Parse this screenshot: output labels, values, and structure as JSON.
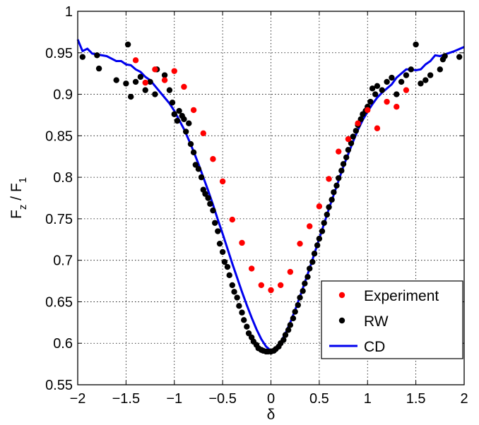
{
  "chart_data": {
    "type": "scatter",
    "xlabel": "δ",
    "ylabel": "F",
    "ylabel_sub_num": "z",
    "ylabel_slash": " / F",
    "ylabel_sub_den": "1",
    "xlim": [
      -2,
      2
    ],
    "ylim": [
      0.55,
      1
    ],
    "x_ticks": [
      -2,
      -1.5,
      -1,
      -0.5,
      0,
      0.5,
      1,
      1.5,
      2
    ],
    "x_tick_labels": [
      "−2",
      "−1.5",
      "−1",
      "−0.5",
      "0",
      "0.5",
      "1",
      "1.5",
      "2"
    ],
    "y_ticks": [
      0.55,
      0.6,
      0.65,
      0.7,
      0.75,
      0.8,
      0.85,
      0.9,
      0.95,
      1
    ],
    "y_tick_labels": [
      "0.55",
      "0.6",
      "0.65",
      "0.7",
      "0.75",
      "0.8",
      "0.85",
      "0.9",
      "0.95",
      "1"
    ],
    "grid": true,
    "legend_position": "bottom-right",
    "series": [
      {
        "name": "Experiment",
        "style": "markers",
        "color": "#ff0000",
        "x": [
          -1.4,
          -1.3,
          -1.2,
          -1.1,
          -1.0,
          -0.9,
          -0.8,
          -0.7,
          -0.6,
          -0.5,
          -0.4,
          -0.3,
          -0.2,
          -0.1,
          0.0,
          0.1,
          0.2,
          0.3,
          0.4,
          0.5,
          0.6,
          0.7,
          0.8,
          0.9,
          1.0,
          1.1,
          1.2,
          1.3,
          1.4
        ],
        "y": [
          0.941,
          0.914,
          0.93,
          0.917,
          0.928,
          0.909,
          0.881,
          0.853,
          0.822,
          0.795,
          0.749,
          0.721,
          0.69,
          0.67,
          0.664,
          0.67,
          0.686,
          0.72,
          0.741,
          0.765,
          0.798,
          0.831,
          0.846,
          0.865,
          0.881,
          0.859,
          0.891,
          0.885,
          0.905
        ]
      },
      {
        "name": "RW",
        "style": "markers",
        "color": "#000000",
        "x": [
          -1.95,
          -1.8,
          -1.78,
          -1.6,
          -1.5,
          -1.48,
          -1.45,
          -1.4,
          -1.35,
          -1.3,
          -1.25,
          -1.2,
          -1.18,
          -1.1,
          -1.05,
          -1.02,
          -1.0,
          -0.97,
          -0.95,
          -0.92,
          -0.9,
          -0.88,
          -0.85,
          -0.83,
          -0.8,
          -0.78,
          -0.75,
          -0.72,
          -0.7,
          -0.68,
          -0.65,
          -0.63,
          -0.6,
          -0.58,
          -0.55,
          -0.53,
          -0.5,
          -0.48,
          -0.45,
          -0.43,
          -0.4,
          -0.38,
          -0.35,
          -0.33,
          -0.3,
          -0.28,
          -0.25,
          -0.23,
          -0.2,
          -0.18,
          -0.15,
          -0.13,
          -0.1,
          -0.08,
          -0.05,
          -0.03,
          0.0,
          0.03,
          0.05,
          0.08,
          0.1,
          0.13,
          0.15,
          0.18,
          0.2,
          0.23,
          0.25,
          0.28,
          0.3,
          0.33,
          0.35,
          0.38,
          0.4,
          0.43,
          0.45,
          0.48,
          0.5,
          0.53,
          0.55,
          0.58,
          0.6,
          0.63,
          0.65,
          0.68,
          0.7,
          0.73,
          0.75,
          0.78,
          0.8,
          0.83,
          0.85,
          0.88,
          0.9,
          0.93,
          0.95,
          0.98,
          1.0,
          1.03,
          1.05,
          1.08,
          1.1,
          1.15,
          1.2,
          1.25,
          1.3,
          1.35,
          1.4,
          1.45,
          1.5,
          1.55,
          1.6,
          1.65,
          1.75,
          1.78,
          1.8,
          1.95
        ],
        "y": [
          0.945,
          0.947,
          0.931,
          0.917,
          0.913,
          0.96,
          0.897,
          0.915,
          0.921,
          0.905,
          0.915,
          0.9,
          0.93,
          0.923,
          0.905,
          0.89,
          0.876,
          0.868,
          0.88,
          0.874,
          0.87,
          0.855,
          0.865,
          0.84,
          0.83,
          0.815,
          0.81,
          0.8,
          0.785,
          0.78,
          0.775,
          0.768,
          0.76,
          0.745,
          0.735,
          0.72,
          0.71,
          0.698,
          0.692,
          0.682,
          0.67,
          0.662,
          0.655,
          0.645,
          0.637,
          0.628,
          0.62,
          0.612,
          0.607,
          0.602,
          0.598,
          0.594,
          0.592,
          0.591,
          0.59,
          0.59,
          0.59,
          0.591,
          0.593,
          0.596,
          0.6,
          0.604,
          0.61,
          0.616,
          0.622,
          0.63,
          0.638,
          0.646,
          0.655,
          0.663,
          0.672,
          0.68,
          0.69,
          0.698,
          0.708,
          0.718,
          0.726,
          0.735,
          0.745,
          0.755,
          0.764,
          0.773,
          0.782,
          0.79,
          0.799,
          0.808,
          0.816,
          0.824,
          0.833,
          0.841,
          0.849,
          0.856,
          0.863,
          0.87,
          0.876,
          0.88,
          0.885,
          0.891,
          0.907,
          0.9,
          0.91,
          0.905,
          0.915,
          0.92,
          0.9,
          0.915,
          0.923,
          0.93,
          0.96,
          0.913,
          0.917,
          0.923,
          0.93,
          0.942,
          0.946,
          0.945
        ]
      },
      {
        "name": "CD",
        "style": "line",
        "color": "#0000ee",
        "x": [
          -2.0,
          -1.95,
          -1.9,
          -1.85,
          -1.8,
          -1.7,
          -1.6,
          -1.55,
          -1.5,
          -1.45,
          -1.4,
          -1.35,
          -1.3,
          -1.25,
          -1.2,
          -1.15,
          -1.1,
          -1.05,
          -1.0,
          -0.95,
          -0.9,
          -0.85,
          -0.8,
          -0.75,
          -0.7,
          -0.65,
          -0.6,
          -0.55,
          -0.5,
          -0.45,
          -0.4,
          -0.35,
          -0.3,
          -0.25,
          -0.2,
          -0.15,
          -0.1,
          -0.05,
          0.0,
          0.05,
          0.1,
          0.15,
          0.2,
          0.25,
          0.3,
          0.35,
          0.4,
          0.45,
          0.5,
          0.55,
          0.6,
          0.65,
          0.7,
          0.75,
          0.8,
          0.85,
          0.9,
          0.95,
          1.0,
          1.05,
          1.1,
          1.15,
          1.2,
          1.25,
          1.3,
          1.35,
          1.4,
          1.45,
          1.5,
          1.55,
          1.6,
          1.65,
          1.7,
          1.75,
          1.8,
          1.9,
          2.0
        ],
        "y": [
          0.966,
          0.952,
          0.955,
          0.949,
          0.948,
          0.946,
          0.94,
          0.94,
          0.936,
          0.935,
          0.93,
          0.927,
          0.921,
          0.917,
          0.91,
          0.903,
          0.896,
          0.889,
          0.88,
          0.869,
          0.858,
          0.845,
          0.831,
          0.816,
          0.8,
          0.784,
          0.767,
          0.749,
          0.732,
          0.714,
          0.696,
          0.679,
          0.662,
          0.646,
          0.631,
          0.617,
          0.605,
          0.596,
          0.591,
          0.594,
          0.601,
          0.612,
          0.625,
          0.64,
          0.656,
          0.673,
          0.69,
          0.708,
          0.726,
          0.744,
          0.762,
          0.779,
          0.796,
          0.813,
          0.828,
          0.843,
          0.857,
          0.869,
          0.879,
          0.888,
          0.896,
          0.902,
          0.907,
          0.912,
          0.92,
          0.925,
          0.93,
          0.93,
          0.929,
          0.93,
          0.936,
          0.94,
          0.947,
          0.946,
          0.948,
          0.952,
          0.957
        ]
      }
    ]
  }
}
